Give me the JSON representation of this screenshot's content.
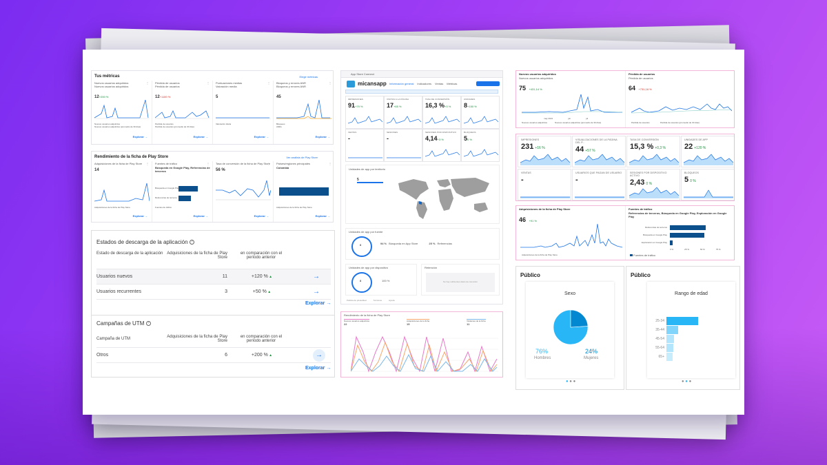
{
  "left_top": {
    "title": "Tus métricas",
    "link": "Elegir métricas",
    "cards": [
      {
        "title": "Nuevos usuarios adquiridos",
        "sub": "Nuevos usuarios adquiridos",
        "value": "12",
        "delta": "+200 %",
        "legend1": "Nuevos usuarios adquiridos",
        "legend2": "Nuevos usuarios adquiridos (promedio de 30 días)",
        "explore": "Explorar"
      },
      {
        "title": "Pérdida de usuarios",
        "sub": "Pérdida de usuarios",
        "value": "12",
        "delta": "+1100 %",
        "legend1": "Pérdida de usuarios",
        "legend2": "Pérdida de usuarios (promedio de 30 días)",
        "explore": "Explorar"
      },
      {
        "title": "Puntuaciones medias",
        "sub": "Valoración media",
        "value": "5",
        "delta": "",
        "legend1": "Valoración diaria",
        "legend2": "",
        "explore": "Explorar"
      },
      {
        "title": "Bloqueos y errores ANR",
        "sub": "Bloqueos y errores ANR",
        "value": "45",
        "delta": "",
        "legend1": "Bloqueos",
        "legend2": "ANRs",
        "explore": "Explorar"
      }
    ]
  },
  "left_mid": {
    "title": "Rendimiento de la ficha de Play Store",
    "link": "Ver análisis de Play Store",
    "cards": [
      {
        "title": "Adquisiciones de la ficha de Play Store",
        "value": "14",
        "legend": "Adquisiciones de la ficha de Play Store",
        "explore": "Explorar"
      },
      {
        "title": "Fuentes de tráfico",
        "sub": "Búsqueda en Google Play, Referencias de terceros",
        "bar1": "Búsqueda en Google Play",
        "bar2": "Referencias de terceros",
        "legend": "Fuentes de tráfico",
        "explore": "Explorar"
      },
      {
        "title": "Tasa de conversión de la ficha de Play Store",
        "value": "56 %",
        "explore": "Explorar"
      },
      {
        "title": "Países/regiones principales",
        "sub": "Colombia",
        "legend": "Adquisiciones de la ficha de Play Store",
        "explore": "Explorar"
      }
    ]
  },
  "downloads": {
    "title": "Estados de descarga de la aplicación",
    "col1": "Estado de descarga de la aplicación",
    "col2": "Adquisiciones de la ficha de Play Store",
    "col3": "en comparación con el período anterior",
    "rows": [
      {
        "label": "Usuarios nuevos",
        "value": "11",
        "delta": "+120 %"
      },
      {
        "label": "Usuarios recurrentes",
        "value": "3",
        "delta": "+50 %"
      }
    ],
    "explore": "Explorar"
  },
  "utm": {
    "title": "Campañas de UTM",
    "col1": "Campaña de UTM",
    "col2": "Adquisiciones de la ficha de Play Store",
    "col3": "en comparación con el período anterior",
    "rows": [
      {
        "label": "Otros",
        "value": "6",
        "delta": "+200 %"
      }
    ],
    "explore": "Explorar"
  },
  "center": {
    "topbar": "App Store Connect",
    "app_name": "micansapp",
    "tabs": [
      "Información general",
      "Indicadores",
      "Ventas",
      "Métricas"
    ],
    "kpis": [
      {
        "label": "Impresiones",
        "value": "91",
        "delta": "+79 %"
      },
      {
        "label": "Visitas a la página",
        "value": "17",
        "delta": "+65 %"
      },
      {
        "label": "Tasa de conversión",
        "value": "16,3 %",
        "delta": "+3 %"
      },
      {
        "label": "Unidades",
        "value": "8",
        "delta": "+150 %"
      },
      {
        "label": "Ventas",
        "value": "-",
        "delta": ""
      },
      {
        "label": "Sesiones",
        "value": "-",
        "delta": ""
      },
      {
        "label": "Sesiones por dispositivo",
        "value": "4,14",
        "delta": "+3 %"
      },
      {
        "label": "Bloqueos",
        "value": "5",
        "delta": "0 %"
      }
    ],
    "map_title": "Unidades de app por territorio",
    "map_value": "5",
    "source_title": "Unidades de app por fuente",
    "source_value": "8",
    "source_rows": [
      {
        "pct": "94 %",
        "label": "Búsqueda en App Store"
      },
      {
        "pct": "25 %",
        "label": "Referencias"
      }
    ],
    "device_title": "Unidades de app por dispositivo",
    "device_value": "8",
    "device_row": "100 %",
    "retention_title": "Retención",
    "retention_note": "No hay suficientes datos de retención",
    "footer_links": [
      "Política de privacidad",
      "Términos",
      "Ayuda"
    ],
    "chart_title": "Rendimiento de la ficha de Play Store",
    "chart_legend": [
      "Nuevos usuarios adquiridos",
      "Adquisiciones de la ficha",
      "Visitantes de la ficha"
    ],
    "chart_values": [
      "22",
      "15",
      "11"
    ]
  },
  "right_top": {
    "card1": {
      "title": "Nuevos usuarios adquiridos",
      "sub": "Nuevos usuarios adquiridos",
      "value": "75",
      "delta": "+431,14 %",
      "legend1": "Nuevos usuarios adquiridos",
      "legend2": "Nuevos usuarios adquiridos (promedio de 30 días)"
    },
    "card2": {
      "title": "Pérdida de usuarios",
      "sub": "Pérdida de usuarios",
      "value": "64",
      "delta": "+731,16 %",
      "legend1": "Pérdida de usuarios",
      "legend2": "Pérdida de usuarios (promedio de 30 días)"
    },
    "x_labels": [
      "may 2021",
      "jun",
      "jul"
    ]
  },
  "right_kpis": [
    {
      "label": "Impresiones",
      "value": "231",
      "delta": "+16 %"
    },
    {
      "label": "Visualizaciones de la página del p...",
      "value": "44",
      "delta": "+57 %"
    },
    {
      "label": "Tasa de conversión",
      "value": "15,3 %",
      "delta": "+0,3 %"
    },
    {
      "label": "Unidades de app",
      "value": "22",
      "delta": "+120 %"
    },
    {
      "label": "Ventas",
      "value": "-",
      "delta": ""
    },
    {
      "label": "Usuarios que pagan de usuario",
      "value": "-",
      "delta": ""
    },
    {
      "label": "Sesiones por dispositivo activo",
      "value": "2,43",
      "delta": "0 %"
    },
    {
      "label": "Bloqueos",
      "value": "5",
      "delta": "0 %"
    }
  ],
  "right_mid": {
    "card1": {
      "title": "Adquisiciones de la ficha de Play Store",
      "value": "46",
      "delta": "+91 %",
      "legend": "Adquisiciones de la ficha de Play Store"
    },
    "card2": {
      "title": "Fuentes de tráfico",
      "sub": "Referencias de terceros, Búsqueda en Google Play, Exploración en Google Play",
      "bars": [
        "Referencias de terceros",
        "Búsqueda en Google Play",
        "Exploración en Google Play"
      ],
      "axis": [
        "0 %",
        "25 %",
        "50 %",
        "75 %"
      ],
      "legend": "Fuentes de tráfico"
    }
  },
  "publico_sexo": {
    "title": "Público",
    "chart_title": "Sexo",
    "men_pct": "76%",
    "men_label": "Hombres",
    "women_pct": "24%",
    "women_label": "Mujeres",
    "colors": {
      "men": "#29b6f6",
      "women": "#0288d1"
    },
    "chart_data": {
      "type": "pie",
      "categories": [
        "Hombres",
        "Mujeres"
      ],
      "values": [
        76,
        24
      ]
    }
  },
  "publico_edad": {
    "title": "Público",
    "chart_title": "Rango de edad",
    "chart_data": {
      "type": "bar",
      "categories": [
        "25-34",
        "35-44",
        "45-54",
        "55-64",
        "65+"
      ],
      "values": [
        100,
        38,
        24,
        22,
        20
      ],
      "ylim": [
        0,
        100
      ]
    }
  }
}
